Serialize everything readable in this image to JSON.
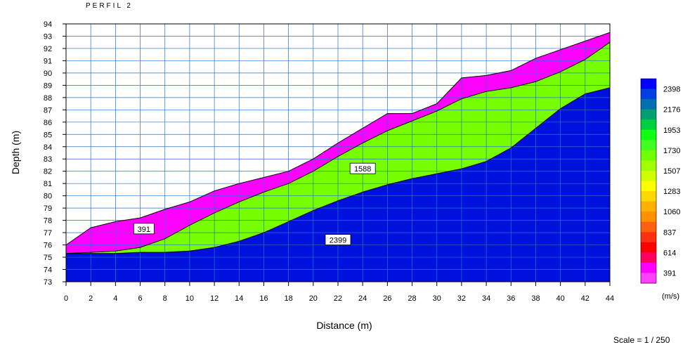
{
  "chart_data": {
    "type": "area",
    "title": "PERFIL 2",
    "xlabel": "Distance (m)",
    "ylabel": "Depth (m)",
    "xlim": [
      0,
      44
    ],
    "ylim": [
      73,
      94
    ],
    "x_ticks": [
      "0",
      "2",
      "4",
      "6",
      "8",
      "10",
      "12",
      "14",
      "16",
      "18",
      "20",
      "22",
      "24",
      "26",
      "28",
      "30",
      "32",
      "34",
      "36",
      "38",
      "40",
      "42",
      "44"
    ],
    "y_ticks": [
      "73",
      "74",
      "75",
      "76",
      "77",
      "78",
      "79",
      "80",
      "81",
      "82",
      "83",
      "84",
      "85",
      "86",
      "87",
      "88",
      "89",
      "90",
      "91",
      "92",
      "93",
      "94"
    ],
    "grid": true,
    "layers": [
      {
        "label": "391",
        "color": "#ff00ff",
        "label_at": {
          "x": 6.3,
          "y": 77.3
        },
        "top": [
          [
            0,
            76.0
          ],
          [
            2,
            77.4
          ],
          [
            4,
            77.9
          ],
          [
            6,
            78.2
          ],
          [
            8,
            78.9
          ],
          [
            10,
            79.5
          ],
          [
            12,
            80.4
          ],
          [
            14,
            81.0
          ],
          [
            16,
            81.5
          ],
          [
            18,
            82.0
          ],
          [
            20,
            83.0
          ],
          [
            22,
            84.3
          ],
          [
            24,
            85.5
          ],
          [
            26,
            86.7
          ],
          [
            28,
            86.7
          ],
          [
            30,
            87.5
          ],
          [
            32,
            89.6
          ],
          [
            34,
            89.8
          ],
          [
            36,
            90.2
          ],
          [
            38,
            91.2
          ],
          [
            40,
            91.9
          ],
          [
            42,
            92.6
          ],
          [
            44,
            93.3
          ]
        ]
      },
      {
        "label": "1588",
        "color": "#77ff00",
        "label_at": {
          "x": 24.0,
          "y": 82.2
        },
        "top": [
          [
            0,
            75.3
          ],
          [
            2,
            75.4
          ],
          [
            4,
            75.5
          ],
          [
            6,
            75.8
          ],
          [
            8,
            76.5
          ],
          [
            10,
            77.6
          ],
          [
            12,
            78.6
          ],
          [
            14,
            79.5
          ],
          [
            16,
            80.3
          ],
          [
            18,
            81.0
          ],
          [
            20,
            82.0
          ],
          [
            22,
            83.2
          ],
          [
            24,
            84.3
          ],
          [
            26,
            85.3
          ],
          [
            28,
            86.1
          ],
          [
            30,
            86.9
          ],
          [
            32,
            87.9
          ],
          [
            34,
            88.5
          ],
          [
            36,
            88.8
          ],
          [
            38,
            89.3
          ],
          [
            40,
            90.1
          ],
          [
            42,
            91.1
          ],
          [
            44,
            92.5
          ]
        ]
      },
      {
        "label": "2399",
        "color": "#0010dd",
        "label_at": {
          "x": 22.0,
          "y": 76.4
        },
        "top": [
          [
            0,
            75.3
          ],
          [
            2,
            75.3
          ],
          [
            4,
            75.3
          ],
          [
            6,
            75.4
          ],
          [
            8,
            75.4
          ],
          [
            10,
            75.5
          ],
          [
            12,
            75.8
          ],
          [
            14,
            76.3
          ],
          [
            16,
            77.0
          ],
          [
            18,
            77.9
          ],
          [
            20,
            78.8
          ],
          [
            22,
            79.6
          ],
          [
            24,
            80.3
          ],
          [
            26,
            80.9
          ],
          [
            28,
            81.4
          ],
          [
            30,
            81.8
          ],
          [
            32,
            82.2
          ],
          [
            34,
            82.8
          ],
          [
            36,
            83.9
          ],
          [
            38,
            85.5
          ],
          [
            40,
            87.1
          ],
          [
            42,
            88.3
          ],
          [
            44,
            88.8
          ]
        ]
      }
    ],
    "colorbar": {
      "unit": "(m/s)",
      "bands": [
        {
          "label": "2398",
          "color": "#0000ff"
        },
        {
          "label": "",
          "color": "#0040e0"
        },
        {
          "label": "2176",
          "color": "#0070b0"
        },
        {
          "label": "",
          "color": "#00a070"
        },
        {
          "label": "1953",
          "color": "#00d040"
        },
        {
          "label": "",
          "color": "#10ff10"
        },
        {
          "label": "1730",
          "color": "#40ff20"
        },
        {
          "label": "",
          "color": "#70ff00"
        },
        {
          "label": "1507",
          "color": "#a0ff00"
        },
        {
          "label": "",
          "color": "#d0ff00"
        },
        {
          "label": "1283",
          "color": "#ffff00"
        },
        {
          "label": "",
          "color": "#ffd800"
        },
        {
          "label": "1060",
          "color": "#ffb000"
        },
        {
          "label": "",
          "color": "#ff9000"
        },
        {
          "label": "837",
          "color": "#ff6010"
        },
        {
          "label": "",
          "color": "#ff3010"
        },
        {
          "label": "614",
          "color": "#ff0000"
        },
        {
          "label": "",
          "color": "#ff0060"
        },
        {
          "label": "391",
          "color": "#ff00ff"
        },
        {
          "label": "",
          "color": "#ff40ff"
        }
      ]
    }
  },
  "scale_note": "Scale = 1 / 250"
}
